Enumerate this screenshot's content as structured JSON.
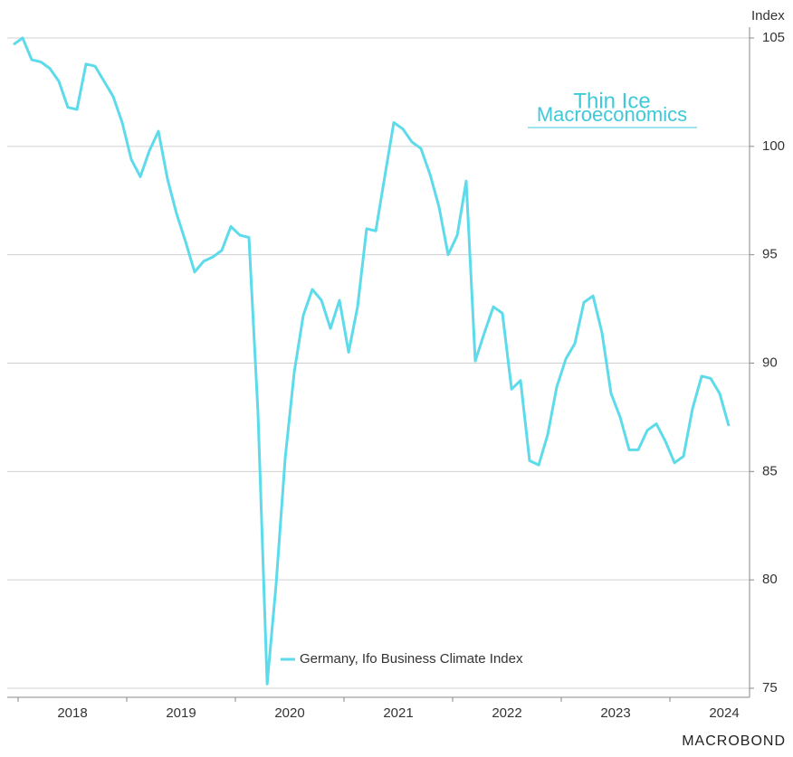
{
  "chart_data": {
    "type": "line",
    "y_axis_label": "Index",
    "logo": [
      "Thin Ice",
      "Macroeconomics"
    ],
    "source": "MACROBOND",
    "legend": "bottom-center",
    "grid": true,
    "xlim": [
      2017.9,
      2024.733
    ],
    "ylim": [
      75,
      105
    ],
    "yticks": [
      75,
      80,
      85,
      90,
      95,
      100,
      105
    ],
    "xticks": [
      2018,
      2019,
      2020,
      2021,
      2022,
      2023,
      2024
    ],
    "x": [
      2017.958,
      2018.042,
      2018.125,
      2018.208,
      2018.292,
      2018.375,
      2018.458,
      2018.542,
      2018.625,
      2018.708,
      2018.792,
      2018.875,
      2018.958,
      2019.042,
      2019.125,
      2019.208,
      2019.292,
      2019.375,
      2019.458,
      2019.542,
      2019.625,
      2019.708,
      2019.792,
      2019.875,
      2019.958,
      2020.042,
      2020.125,
      2020.208,
      2020.292,
      2020.375,
      2020.458,
      2020.542,
      2020.625,
      2020.708,
      2020.792,
      2020.875,
      2020.958,
      2021.042,
      2021.125,
      2021.208,
      2021.292,
      2021.375,
      2021.458,
      2021.542,
      2021.625,
      2021.708,
      2021.792,
      2021.875,
      2021.958,
      2022.042,
      2022.125,
      2022.208,
      2022.292,
      2022.375,
      2022.458,
      2022.542,
      2022.625,
      2022.708,
      2022.792,
      2022.875,
      2022.958,
      2023.042,
      2023.125,
      2023.208,
      2023.292,
      2023.375,
      2023.458,
      2023.542,
      2023.625,
      2023.708,
      2023.792,
      2023.875,
      2023.958,
      2024.042,
      2024.125,
      2024.208,
      2024.292,
      2024.375,
      2024.458,
      2024.542
    ],
    "series": [
      {
        "name": "Germany, Ifo Business Climate Index",
        "color": "#5ddbea",
        "values": [
          104.7,
          105.0,
          104.0,
          103.9,
          103.6,
          103.0,
          101.8,
          101.7,
          103.8,
          103.7,
          103.0,
          102.3,
          101.1,
          99.4,
          98.6,
          99.8,
          100.7,
          98.5,
          96.9,
          95.6,
          94.2,
          94.7,
          94.9,
          95.2,
          96.3,
          95.9,
          95.8,
          87.7,
          75.2,
          79.8,
          85.6,
          89.6,
          92.2,
          93.4,
          92.9,
          91.6,
          92.9,
          90.5,
          92.6,
          96.2,
          96.1,
          98.6,
          101.1,
          100.8,
          100.2,
          99.9,
          98.7,
          97.2,
          95.0,
          95.9,
          98.4,
          90.1,
          91.4,
          92.6,
          92.3,
          88.8,
          89.2,
          85.5,
          85.3,
          86.7,
          88.9,
          90.2,
          90.9,
          92.8,
          93.1,
          91.4,
          88.6,
          87.5,
          86.0,
          86.0,
          86.9,
          87.2,
          86.4,
          85.4,
          85.7,
          87.9,
          89.4,
          89.3,
          88.6,
          87.1
        ]
      }
    ]
  }
}
